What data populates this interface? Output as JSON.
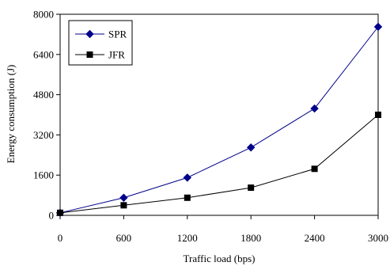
{
  "chart_data": {
    "type": "line",
    "title": "",
    "xlabel": "Traffic load (bps)",
    "ylabel": "Energy consumption (J)",
    "x": [
      0,
      600,
      1200,
      1800,
      2400,
      3000
    ],
    "xlim": [
      0,
      3000
    ],
    "ylim": [
      0,
      8000
    ],
    "xticks": [
      "0",
      "600",
      "1200",
      "1800",
      "2400",
      "3000"
    ],
    "yticks": [
      "0",
      "1600",
      "3200",
      "4800",
      "6400",
      "8000"
    ],
    "grid": false,
    "legend_position": "top-left",
    "series": [
      {
        "name": "SPR",
        "color": "#00008B",
        "marker": "diamond",
        "values": [
          100,
          700,
          1500,
          2700,
          4250,
          7500
        ]
      },
      {
        "name": "JFR",
        "color": "#000000",
        "marker": "square",
        "values": [
          100,
          400,
          700,
          1100,
          1850,
          4000
        ]
      }
    ]
  }
}
